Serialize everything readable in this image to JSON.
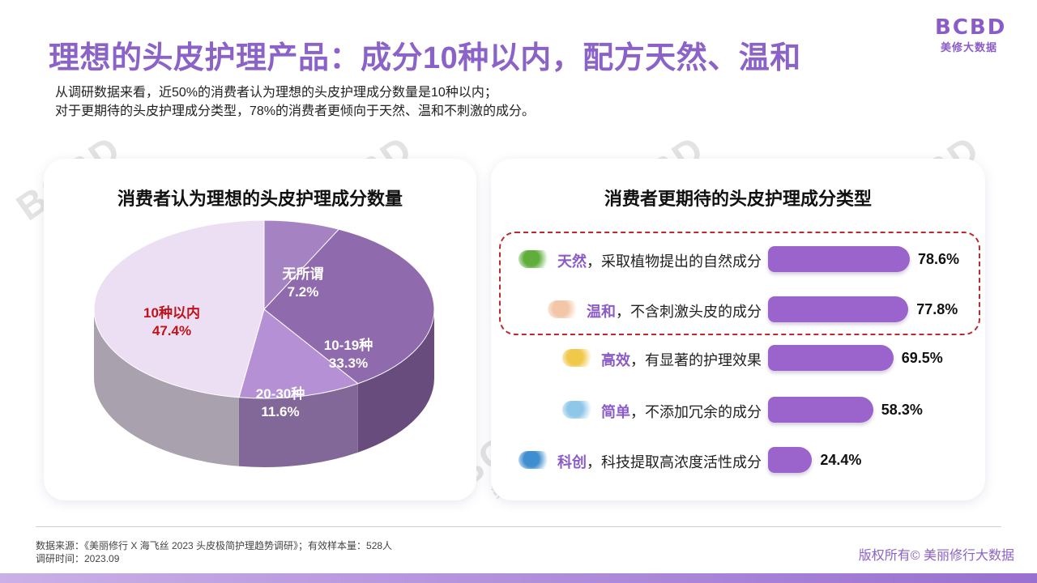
{
  "title": "理想的头皮护理产品：成分10种以内，配方天然、温和",
  "logo": {
    "mark": "BCBD",
    "sub": "美修大数据"
  },
  "description": [
    "从调研数据来看，近50%的消费者认为理想的头皮护理成分数量是10种以内；",
    "对于更期待的头皮护理成分类型，78%的消费者更倾向于天然、温和不刺激的成分。"
  ],
  "watermark": {
    "mark": "BCBD",
    "sub": "美修大数据"
  },
  "chart_data": [
    {
      "type": "pie",
      "title": "消费者认为理想的头皮护理成分数量",
      "categories": [
        "10种以内",
        "无所谓",
        "10-19种",
        "20-30种"
      ],
      "values": [
        47.4,
        7.2,
        33.3,
        11.6
      ],
      "labels": [
        "47.4%",
        "7.2%",
        "33.3%",
        "11.6%"
      ],
      "colors": [
        "#ecdff3",
        "#a582c2",
        "#8f6aad",
        "#b590d4"
      ],
      "highlight_color": "#c0121b"
    },
    {
      "type": "bar",
      "orientation": "horizontal",
      "title": "消费者更期待的头皮护理成分类型",
      "categories": [
        {
          "keyword": "天然",
          "rest": "，采取植物提出的自然成分",
          "icon": "leaf-icon",
          "icon_color": "#5fae3c"
        },
        {
          "keyword": "温和",
          "rest": "，不含刺激头皮的成分",
          "icon": "baby-icon",
          "icon_color": "#f2c6a6"
        },
        {
          "keyword": "高效",
          "rest": "，有显著的护理效果",
          "icon": "sparkle-icon",
          "icon_color": "#f0c84a"
        },
        {
          "keyword": "简单",
          "rest": "，不添加冗余的成分",
          "icon": "droplet-icon",
          "icon_color": "#8fc7ea"
        },
        {
          "keyword": "科创",
          "rest": "，科技提取高浓度活性成分",
          "icon": "capsule-icon",
          "icon_color": "#3f8ed0"
        }
      ],
      "values": [
        78.6,
        77.8,
        69.5,
        58.3,
        24.4
      ],
      "labels": [
        "78.6%",
        "77.8%",
        "69.5%",
        "58.3%",
        "24.4%"
      ],
      "bar_color": "#9a64cc",
      "highlight_box_color": "#c0282f",
      "highlighted": [
        "天然",
        "温和"
      ]
    }
  ],
  "source": {
    "line1": "数据来源：《美丽修行 X 海飞丝 2023 头皮极简护理趋势调研》；有效样本量：528人",
    "line2": "调研时间：2023.09"
  },
  "copyright": "版权所有© 美丽修行大数据"
}
